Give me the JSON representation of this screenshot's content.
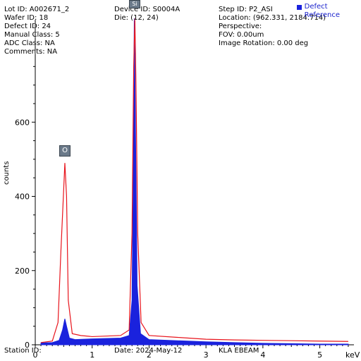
{
  "header": {
    "col1": [
      {
        "label": "Lot ID",
        "value": "A002671_2"
      },
      {
        "label": "Wafer ID",
        "value": "18"
      },
      {
        "label": "Defect ID",
        "value": "24"
      },
      {
        "label": "Manual Class",
        "value": "5"
      },
      {
        "label": "ADC Class",
        "value": "NA"
      },
      {
        "label": "Comments",
        "value": "NA"
      }
    ],
    "col2": [
      {
        "label": "Device ID",
        "value": "S0004A"
      },
      {
        "label": "Die",
        "value": "(12, 24)"
      }
    ],
    "col3": [
      {
        "label": "Step ID",
        "value": "P2_ASI"
      },
      {
        "label": "Location",
        "value": "(962.331, 2184.714)"
      },
      {
        "label": "Perspective",
        "value": ""
      },
      {
        "label": "FOV",
        "value": "0.00um"
      },
      {
        "label": "Image Rotation",
        "value": "0.00 deg"
      }
    ]
  },
  "lines": {
    "lot": "Lot ID: A002671_2",
    "wafer": "Wafer ID: 18",
    "defect": "Defect ID: 24",
    "manual": "Manual Class: 5",
    "adc": "ADC Class: NA",
    "comments": "Comments: NA",
    "device": "Device ID: S0004A",
    "die": "Die: (12, 24)",
    "step": "Step ID: P2_ASI",
    "location": "Location: (962.331, 2184.714)",
    "perspective": "Perspective:",
    "fov": "FOV: 0.00um",
    "rotation": "Image Rotation: 0.00 deg"
  },
  "footer": {
    "station": "Station ID:",
    "date": "Date: 2024-May-12",
    "tool": "KLA EBEAM"
  },
  "legend": {
    "defect": "Defect",
    "reference": "Reference",
    "defect_color": "#1a22dd",
    "reference_color": "#e8141c"
  },
  "peaks": {
    "o": "O",
    "si": "Si"
  },
  "chart_data": {
    "type": "area",
    "xlabel": "keV",
    "ylabel": "counts",
    "xlim": [
      0,
      5.6
    ],
    "ylim": [
      0,
      800
    ],
    "xticks": [
      "0",
      "1",
      "2",
      "3",
      "4",
      "5"
    ],
    "yticks": [
      "0",
      "200",
      "400",
      "600"
    ],
    "series": [
      {
        "name": "Defect",
        "color": "#1a22dd",
        "points": [
          [
            0.1,
            5
          ],
          [
            0.3,
            6
          ],
          [
            0.42,
            12
          ],
          [
            0.48,
            40
          ],
          [
            0.52,
            70
          ],
          [
            0.55,
            50
          ],
          [
            0.6,
            18
          ],
          [
            0.7,
            14
          ],
          [
            1.0,
            16
          ],
          [
            1.5,
            18
          ],
          [
            1.65,
            25
          ],
          [
            1.7,
            120
          ],
          [
            1.72,
            420
          ],
          [
            1.74,
            900
          ],
          [
            1.76,
            600
          ],
          [
            1.79,
            160
          ],
          [
            1.85,
            30
          ],
          [
            2.0,
            14
          ],
          [
            2.5,
            11
          ],
          [
            3.0,
            8
          ],
          [
            3.5,
            6
          ],
          [
            4.0,
            4
          ],
          [
            4.5,
            3
          ],
          [
            5.0,
            2
          ],
          [
            5.5,
            2
          ]
        ]
      },
      {
        "name": "Reference",
        "color": "#e8141c",
        "points": [
          [
            0.1,
            6
          ],
          [
            0.3,
            10
          ],
          [
            0.4,
            60
          ],
          [
            0.45,
            250
          ],
          [
            0.5,
            420
          ],
          [
            0.52,
            490
          ],
          [
            0.55,
            400
          ],
          [
            0.58,
            120
          ],
          [
            0.65,
            30
          ],
          [
            0.8,
            25
          ],
          [
            1.0,
            22
          ],
          [
            1.5,
            25
          ],
          [
            1.65,
            40
          ],
          [
            1.7,
            300
          ],
          [
            1.73,
            750
          ],
          [
            1.75,
            900
          ],
          [
            1.77,
            700
          ],
          [
            1.8,
            300
          ],
          [
            1.86,
            60
          ],
          [
            2.0,
            25
          ],
          [
            2.5,
            20
          ],
          [
            3.0,
            15
          ],
          [
            3.5,
            13
          ],
          [
            4.0,
            12
          ],
          [
            4.5,
            11
          ],
          [
            5.0,
            10
          ],
          [
            5.5,
            9
          ]
        ]
      }
    ],
    "annotations": [
      {
        "label": "O",
        "x": 0.52
      },
      {
        "label": "Si",
        "x": 1.74
      }
    ]
  }
}
